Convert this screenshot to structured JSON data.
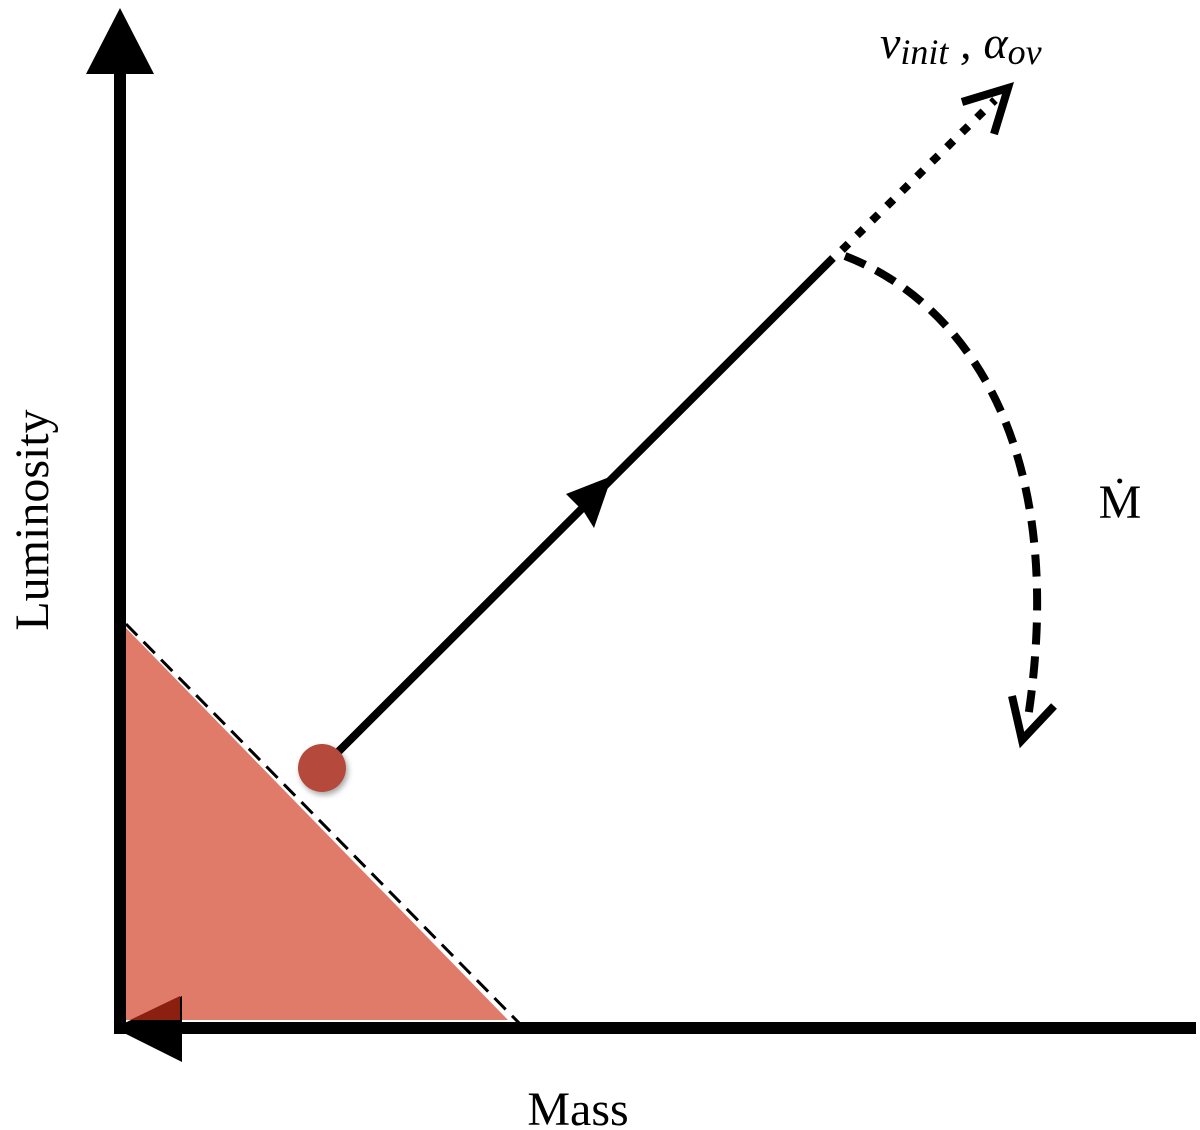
{
  "labels": {
    "y_axis": "Luminosity",
    "x_axis": "Mass",
    "top": {
      "v": "v",
      "v_sub": "init",
      "sep": " ,",
      "alpha": "α",
      "alpha_sub": "ov"
    },
    "mass_loss": "Ṁ"
  }
}
